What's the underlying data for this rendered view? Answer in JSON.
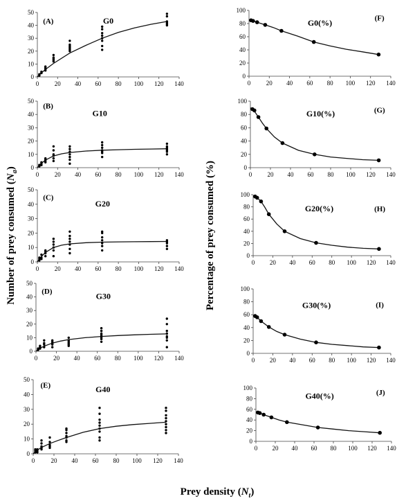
{
  "figure": {
    "ylabel_left": "Number of prey consumed (",
    "ylabel_left_sym": "N",
    "ylabel_left_sub": "a",
    "ylabel_left_close": ")",
    "ylabel_right": "Percentage of prey consumed (%)",
    "xlabel": "Prey density (",
    "xlabel_sym": "N",
    "xlabel_sub": "t",
    "xlabel_close": ")"
  },
  "chart_data": [
    {
      "id": "A",
      "type": "scatter",
      "label": "(A)",
      "title": "G0",
      "xlim": [
        0,
        140
      ],
      "ylim": [
        0,
        50
      ],
      "xticks": [
        0,
        20,
        40,
        60,
        80,
        100,
        120,
        140
      ],
      "yticks": [
        0,
        10,
        20,
        30,
        40,
        50
      ],
      "points": {
        "x": [
          2,
          2,
          2,
          4,
          4,
          4,
          8,
          8,
          8,
          8,
          16,
          16,
          16,
          16,
          16,
          32,
          32,
          32,
          32,
          32,
          32,
          32,
          64,
          64,
          64,
          64,
          64,
          64,
          64,
          64,
          128,
          128,
          128,
          128,
          128,
          128
        ],
        "y": [
          1,
          2,
          2,
          3,
          3,
          4,
          5,
          6,
          7,
          8,
          12,
          13,
          14,
          15,
          17,
          20,
          21,
          22,
          23,
          24,
          25,
          28,
          21,
          24,
          28,
          30,
          32,
          34,
          37,
          39,
          40,
          41,
          42,
          43,
          47,
          49
        ]
      },
      "curve": {
        "x": [
          0,
          2,
          4,
          8,
          16,
          32,
          48,
          64,
          80,
          96,
          112,
          128
        ],
        "y": [
          0,
          1.6,
          3.1,
          5.8,
          10.5,
          18.5,
          24.5,
          30,
          34.5,
          38,
          40.8,
          43
        ]
      }
    },
    {
      "id": "B",
      "type": "scatter",
      "label": "(B)",
      "title": "G10",
      "xlim": [
        0,
        140
      ],
      "ylim": [
        0,
        50
      ],
      "xticks": [
        0,
        20,
        40,
        60,
        80,
        100,
        120,
        140
      ],
      "yticks": [
        0,
        10,
        20,
        30,
        40,
        50
      ],
      "points": {
        "x": [
          2,
          2,
          2,
          4,
          4,
          4,
          8,
          8,
          8,
          8,
          16,
          16,
          16,
          16,
          16,
          16,
          32,
          32,
          32,
          32,
          32,
          32,
          32,
          64,
          64,
          64,
          64,
          64,
          64,
          64,
          128,
          128,
          128,
          128,
          128,
          128,
          128
        ],
        "y": [
          1,
          2,
          2,
          2,
          3,
          4,
          4,
          5,
          6,
          7,
          5,
          7,
          9,
          10,
          13,
          16,
          3,
          6,
          8,
          10,
          12,
          14,
          16,
          8,
          11,
          12,
          13,
          15,
          17,
          19,
          10,
          12,
          13,
          14,
          15,
          16,
          18
        ]
      },
      "curve": {
        "x": [
          0,
          2,
          4,
          8,
          16,
          24,
          32,
          48,
          64,
          80,
          96,
          112,
          128
        ],
        "y": [
          0,
          1.7,
          3.3,
          5.7,
          8.8,
          10.4,
          11.4,
          12.5,
          13.1,
          13.5,
          13.8,
          14,
          14.2
        ]
      }
    },
    {
      "id": "C",
      "type": "scatter",
      "label": "(C)",
      "title": "G20",
      "xlim": [
        0,
        140
      ],
      "ylim": [
        0,
        50
      ],
      "xticks": [
        0,
        20,
        40,
        60,
        80,
        100,
        120,
        140
      ],
      "yticks": [
        0,
        10,
        20,
        30,
        40,
        50
      ],
      "points": {
        "x": [
          2,
          2,
          2,
          4,
          4,
          4,
          8,
          8,
          8,
          8,
          16,
          16,
          16,
          16,
          16,
          16,
          32,
          32,
          32,
          32,
          32,
          32,
          32,
          64,
          64,
          64,
          64,
          64,
          64,
          64,
          128,
          128,
          128,
          128,
          128
        ],
        "y": [
          1,
          2,
          3,
          2,
          3,
          5,
          4,
          6,
          7,
          8,
          4,
          8,
          10,
          12,
          14,
          16,
          6,
          9,
          12,
          14,
          16,
          18,
          21,
          8,
          11,
          13,
          15,
          17,
          20,
          21,
          9,
          11,
          13,
          14,
          15
        ]
      },
      "curve": {
        "x": [
          0,
          2,
          4,
          8,
          16,
          24,
          32,
          48,
          64,
          80,
          96,
          112,
          128
        ],
        "y": [
          0,
          1.9,
          3.7,
          6.6,
          10,
          11.6,
          12.5,
          13.3,
          13.7,
          13.9,
          14,
          14.1,
          14.2
        ]
      }
    },
    {
      "id": "D",
      "type": "scatter",
      "label": "(D)",
      "title": "G30",
      "xlim": [
        0,
        140
      ],
      "ylim": [
        0,
        50
      ],
      "xticks": [
        0,
        20,
        40,
        60,
        80,
        100,
        120,
        140
      ],
      "yticks": [
        0,
        10,
        20,
        30,
        40,
        50
      ],
      "points": {
        "x": [
          2,
          2,
          2,
          4,
          4,
          4,
          8,
          8,
          8,
          8,
          16,
          16,
          16,
          16,
          16,
          32,
          32,
          32,
          32,
          32,
          32,
          64,
          64,
          64,
          64,
          64,
          64,
          64,
          64,
          128,
          128,
          128,
          128,
          128,
          128,
          128,
          128
        ],
        "y": [
          1,
          1,
          2,
          2,
          3,
          4,
          3,
          5,
          6,
          8,
          3,
          5,
          6,
          7,
          8,
          4,
          5,
          6,
          7,
          8,
          10,
          7,
          9,
          10,
          11,
          12,
          13,
          15,
          17,
          3,
          8,
          10,
          11,
          13,
          15,
          20,
          24
        ]
      },
      "curve": {
        "x": [
          0,
          2,
          4,
          8,
          16,
          24,
          32,
          48,
          64,
          80,
          96,
          112,
          128
        ],
        "y": [
          0,
          1.1,
          2.2,
          3.8,
          6,
          7.5,
          8.6,
          10,
          10.9,
          11.6,
          12.1,
          12.5,
          12.8
        ]
      }
    },
    {
      "id": "E",
      "type": "scatter",
      "label": "(E)",
      "title": "G40",
      "xlim": [
        0,
        140
      ],
      "ylim": [
        0,
        50
      ],
      "xticks": [
        0,
        20,
        40,
        60,
        80,
        100,
        120,
        140
      ],
      "yticks": [
        0,
        10,
        20,
        30,
        40,
        50
      ],
      "points": {
        "x": [
          2,
          2,
          2,
          4,
          4,
          4,
          8,
          8,
          8,
          8,
          8,
          16,
          16,
          16,
          16,
          16,
          32,
          32,
          32,
          32,
          32,
          32,
          32,
          64,
          64,
          64,
          64,
          64,
          64,
          64,
          64,
          64,
          128,
          128,
          128,
          128,
          128,
          128,
          128,
          128,
          128
        ],
        "y": [
          1,
          2,
          3,
          1,
          2,
          3,
          3,
          4,
          5,
          7,
          9,
          4,
          5,
          6,
          8,
          11,
          8,
          9,
          11,
          12,
          14,
          16,
          17,
          9,
          11,
          15,
          17,
          19,
          21,
          23,
          27,
          31,
          14,
          16,
          18,
          20,
          22,
          24,
          26,
          29,
          31
        ]
      },
      "curve": {
        "x": [
          0,
          2,
          4,
          8,
          16,
          24,
          32,
          48,
          64,
          80,
          96,
          112,
          128
        ],
        "y": [
          0,
          1.3,
          2.5,
          4.3,
          6.9,
          9,
          11,
          14.5,
          17,
          18.6,
          19.7,
          20.5,
          21.3
        ]
      }
    },
    {
      "id": "F",
      "type": "line",
      "label": "(F)",
      "title": "G0(%)",
      "xlim": [
        0,
        140
      ],
      "ylim": [
        0,
        100
      ],
      "xticks": [
        0,
        20,
        40,
        60,
        80,
        100,
        120,
        140
      ],
      "yticks": [
        0,
        20,
        40,
        60,
        80,
        100
      ],
      "points": {
        "x": [
          2,
          4,
          8,
          16,
          32,
          64,
          128
        ],
        "y": [
          85,
          84,
          82,
          78,
          69,
          52,
          33
        ]
      },
      "curve": {
        "x": [
          0,
          2,
          4,
          8,
          16,
          24,
          32,
          48,
          64,
          80,
          96,
          112,
          128
        ],
        "y": [
          86,
          85,
          84,
          82,
          78,
          74,
          69,
          61,
          52,
          46,
          41,
          37,
          33
        ]
      }
    },
    {
      "id": "G",
      "type": "line",
      "label": "(G)",
      "title": "G10(%)",
      "xlim": [
        0,
        140
      ],
      "ylim": [
        0,
        100
      ],
      "xticks": [
        0,
        20,
        40,
        60,
        80,
        100,
        120,
        140
      ],
      "yticks": [
        0,
        20,
        40,
        60,
        80,
        100
      ],
      "points": {
        "x": [
          2,
          4,
          8,
          16,
          32,
          64,
          128
        ],
        "y": [
          88,
          86,
          76,
          59,
          37,
          20,
          11
        ]
      },
      "curve": {
        "x": [
          0,
          2,
          4,
          8,
          12,
          16,
          24,
          32,
          48,
          64,
          80,
          96,
          112,
          128
        ],
        "y": [
          90,
          88,
          85,
          76,
          67,
          59,
          46,
          37,
          26,
          20,
          16,
          14,
          12,
          11
        ]
      }
    },
    {
      "id": "H",
      "type": "line",
      "label": "(H)",
      "title": "G20(%)",
      "xlim": [
        0,
        140
      ],
      "ylim": [
        0,
        100
      ],
      "xticks": [
        0,
        20,
        40,
        60,
        80,
        100,
        120,
        140
      ],
      "yticks": [
        0,
        20,
        40,
        60,
        80,
        100
      ],
      "points": {
        "x": [
          2,
          4,
          8,
          16,
          32,
          64,
          128
        ],
        "y": [
          97,
          95,
          89,
          68,
          40,
          21,
          11
        ]
      },
      "curve": {
        "x": [
          0,
          2,
          4,
          8,
          12,
          16,
          24,
          32,
          48,
          64,
          80,
          96,
          112,
          128
        ],
        "y": [
          98,
          97,
          95,
          89,
          79,
          68,
          52,
          40,
          28,
          21,
          17,
          14,
          12,
          11
        ]
      }
    },
    {
      "id": "I",
      "type": "line",
      "label": "(I)",
      "title": "G30(%)",
      "xlim": [
        0,
        140
      ],
      "ylim": [
        0,
        100
      ],
      "xticks": [
        0,
        20,
        40,
        60,
        80,
        100,
        120,
        140
      ],
      "yticks": [
        0,
        20,
        40,
        60,
        80,
        100
      ],
      "points": {
        "x": [
          2,
          4,
          8,
          16,
          32,
          64,
          128
        ],
        "y": [
          58,
          56,
          50,
          41,
          29,
          17,
          9
        ]
      },
      "curve": {
        "x": [
          0,
          2,
          4,
          8,
          16,
          24,
          32,
          48,
          64,
          80,
          96,
          112,
          128
        ],
        "y": [
          59,
          58,
          56,
          50,
          41,
          34,
          29,
          22,
          17,
          14,
          12,
          10,
          9
        ]
      }
    },
    {
      "id": "J",
      "type": "line",
      "label": "(J)",
      "title": "G40(%)",
      "xlim": [
        0,
        140
      ],
      "ylim": [
        0,
        100
      ],
      "xticks": [
        0,
        20,
        40,
        60,
        80,
        100,
        120,
        140
      ],
      "yticks": [
        0,
        20,
        40,
        60,
        80,
        100
      ],
      "points": {
        "x": [
          2,
          4,
          8,
          16,
          32,
          64,
          128
        ],
        "y": [
          54,
          53,
          50,
          45,
          36,
          26,
          16
        ]
      },
      "curve": {
        "x": [
          0,
          2,
          4,
          8,
          16,
          24,
          32,
          48,
          64,
          80,
          96,
          112,
          128
        ],
        "y": [
          55,
          54,
          53,
          50,
          45,
          40,
          36,
          31,
          26,
          23,
          20,
          18,
          16
        ]
      }
    }
  ]
}
